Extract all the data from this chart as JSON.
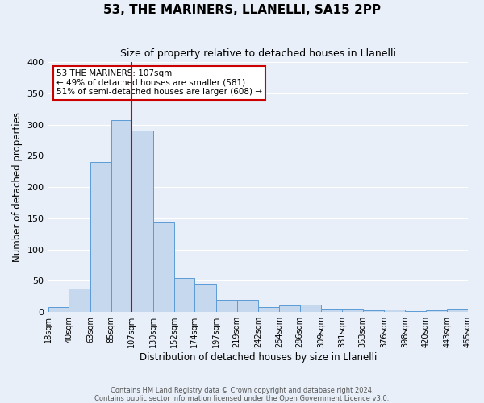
{
  "title": "53, THE MARINERS, LLANELLI, SA15 2PP",
  "subtitle": "Size of property relative to detached houses in Llanelli",
  "xlabel": "Distribution of detached houses by size in Llanelli",
  "ylabel": "Number of detached properties",
  "bin_edges": [
    18,
    40,
    63,
    85,
    107,
    130,
    152,
    174,
    197,
    219,
    242,
    264,
    286,
    309,
    331,
    353,
    376,
    398,
    420,
    443,
    465
  ],
  "bar_heights": [
    8,
    38,
    240,
    307,
    290,
    143,
    55,
    45,
    20,
    20,
    8,
    10,
    12,
    5,
    5,
    3,
    4,
    1,
    3,
    5
  ],
  "bar_color": "#c5d8ed",
  "bar_edge_color": "#5b9bd5",
  "vline_x": 107,
  "vline_color": "#cc0000",
  "annotation_text": "53 THE MARINERS: 107sqm\n← 49% of detached houses are smaller (581)\n51% of semi-detached houses are larger (608) →",
  "annotation_box_color": "#ffffff",
  "annotation_box_edge": "#cc0000",
  "footer_text": "Contains HM Land Registry data © Crown copyright and database right 2024.\nContains public sector information licensed under the Open Government Licence v3.0.",
  "ylim": [
    0,
    400
  ],
  "yticks": [
    0,
    50,
    100,
    150,
    200,
    250,
    300,
    350,
    400
  ],
  "background_color": "#e8eff8",
  "grid_color": "#ffffff",
  "title_fontsize": 11,
  "subtitle_fontsize": 9,
  "xlabel_fontsize": 8.5,
  "ylabel_fontsize": 8.5,
  "tick_label_fontsize": 7,
  "footer_fontsize": 6
}
